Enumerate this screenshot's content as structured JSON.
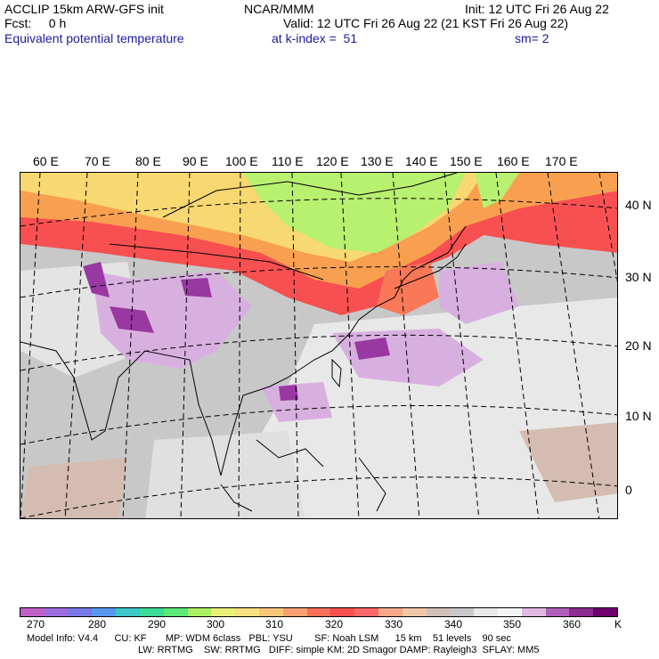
{
  "header": {
    "line1_left": "ACCLIP 15km ARW-GFS init",
    "line1_center": "NCAR/MMM",
    "line1_right": "Init: 12 UTC Fri 26 Aug 22",
    "line2_left": "Fcst:     0 h",
    "line2_right": "Valid: 12 UTC Fri 26 Aug 22 (21 KST Fri 26 Aug 22)",
    "field_name": "Equivalent potential temperature",
    "level": "at k-index =  51",
    "smoothing": "sm= 2"
  },
  "longitude_labels": [
    "60 E",
    "70 E",
    "80 E",
    "90 E",
    "100 E",
    "110 E",
    "120 E",
    "130 E",
    "140 E",
    "150 E",
    "160 E",
    "170 E"
  ],
  "latitude_labels": [
    "40 N",
    "30 N",
    "20 N",
    "10 N",
    "0"
  ],
  "colorbar": {
    "colors": [
      "#c060c8",
      "#9a6ee0",
      "#7878e8",
      "#5a96f0",
      "#3cc8c8",
      "#3cdc96",
      "#5ae878",
      "#aaf064",
      "#e8f078",
      "#f8e080",
      "#f8c878",
      "#f8a070",
      "#f87058",
      "#f85050",
      "#f86868",
      "#f8a888",
      "#f0c8a8",
      "#d0c0b8",
      "#c8c8c8",
      "#e8e8e8",
      "#f4f4f4",
      "#e0b8e0",
      "#b060b8",
      "#8c2c90",
      "#700070"
    ],
    "tick_labels": [
      "270",
      "280",
      "290",
      "300",
      "310",
      "320",
      "330",
      "340",
      "350",
      "360"
    ],
    "unit": "K"
  },
  "footer": {
    "line1": "Model Info: V4.4      CU: KF       MP: WDM 6class   PBL: YSU        SF: Noah LSM      15 km    51 levels    90 sec",
    "line2": "LW: RRTMG    SW: RRTMG   DIFF: simple KM: 2D Smagor DAMP: Rayleigh3  SFLAY: MM5"
  },
  "field_colors": {
    "orange": "#f8a050",
    "yellow": "#f8d870",
    "red": "#f85050",
    "salmon": "#f87858",
    "green": "#b8f070",
    "lightgreen": "#d8f080",
    "purple": "#d8b0e0",
    "darkpurple": "#9838a0",
    "midpurple": "#c070c8",
    "gray": "#c8c8c8",
    "lightgray": "#e8e8e8",
    "tan": "#d4bcb0"
  }
}
